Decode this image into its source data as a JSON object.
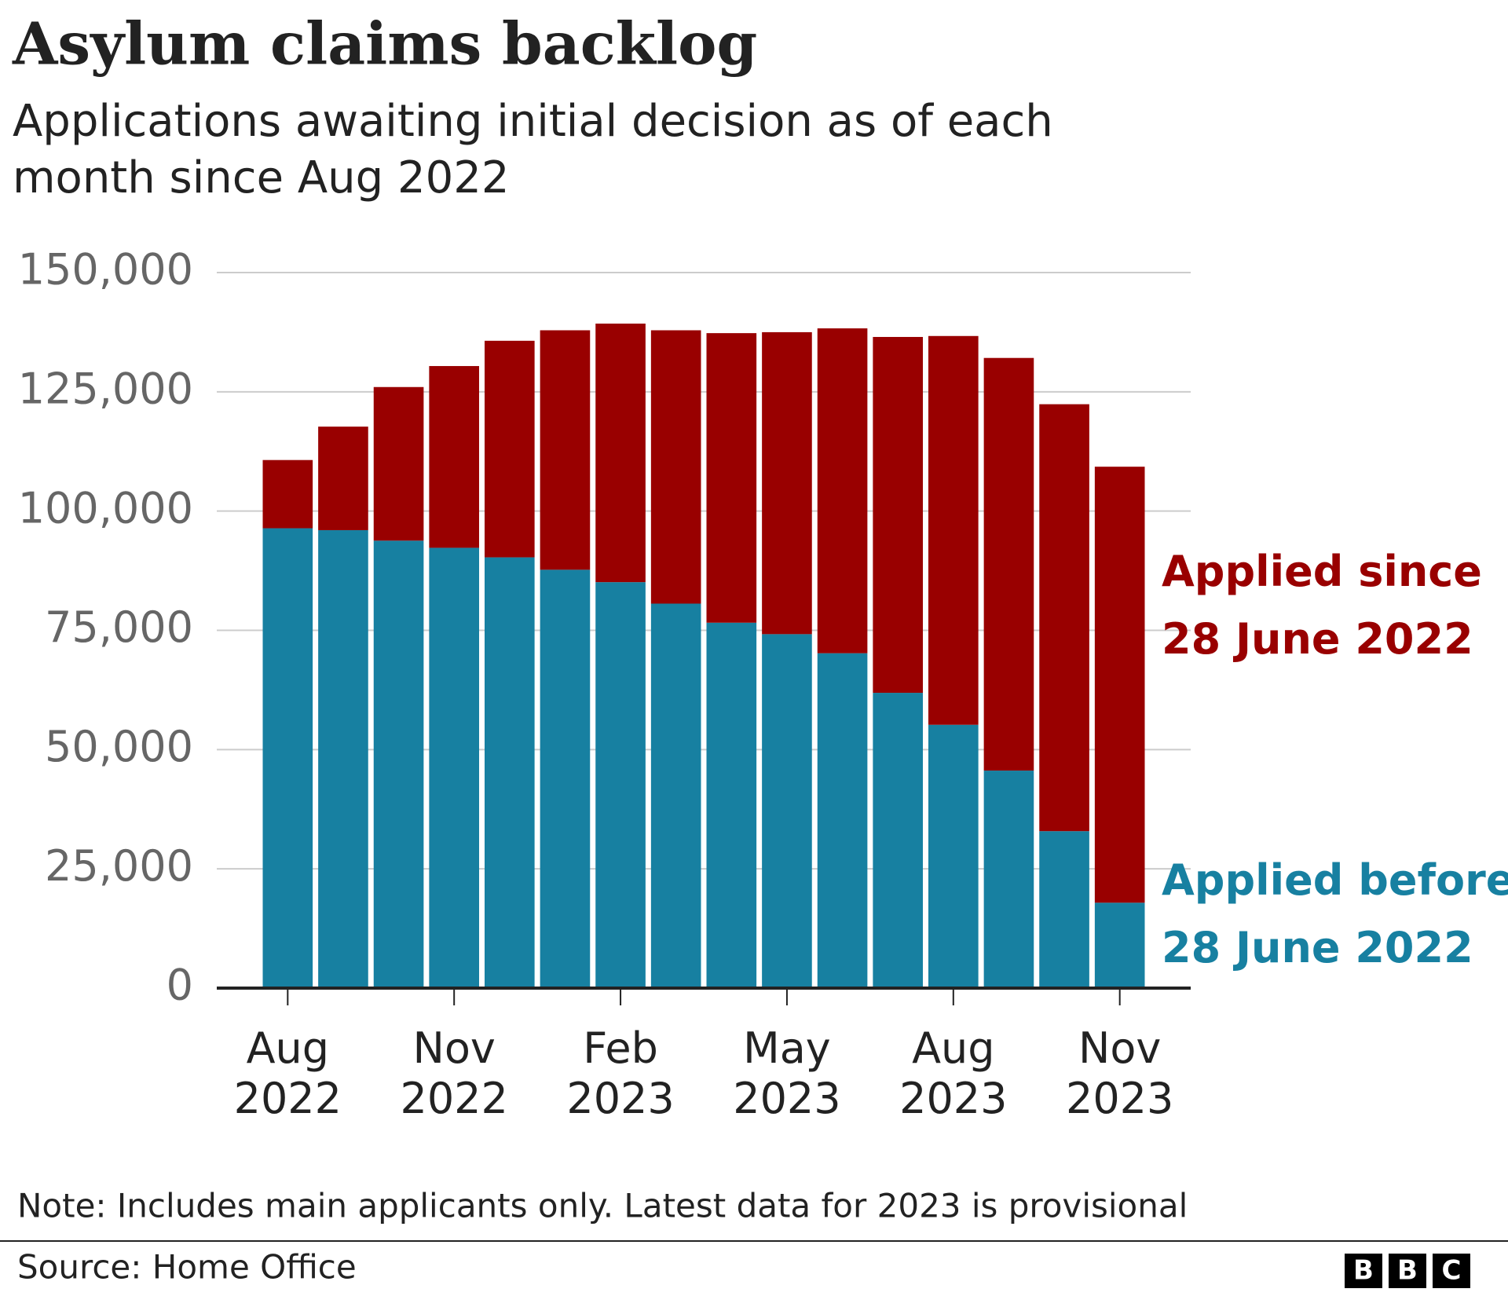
{
  "chart_data": {
    "type": "stacked_bar",
    "title": "Asylum claims backlog",
    "subtitle": "Applications awaiting initial decision as of each month since Aug 2022",
    "categories": [
      "Aug 2022",
      null,
      null,
      "Nov 2022",
      null,
      null,
      "Feb 2023",
      null,
      null,
      "May 2023",
      null,
      null,
      "Aug 2023",
      null,
      null,
      "Nov 2023"
    ],
    "series": [
      {
        "name": "Applied before 28 June 2022",
        "color": "#1780a1",
        "values": [
          96400,
          96000,
          93800,
          92300,
          90300,
          87700,
          85100,
          80600,
          76600,
          74200,
          70200,
          61900,
          55200,
          45600,
          32900,
          17900
        ]
      },
      {
        "name": "Applied since 28 June 2022",
        "color": "#990000",
        "values": [
          14300,
          21700,
          32200,
          38100,
          45400,
          50200,
          54200,
          57300,
          60700,
          63300,
          68100,
          74600,
          81500,
          86500,
          89500,
          91400
        ]
      }
    ],
    "ylim": [
      0,
      150000
    ],
    "yticks": [
      0,
      {
        "value": 25000,
        "label": "25,000"
      },
      {
        "value": 50000,
        "label": "50,000"
      },
      {
        "value": 75000,
        "label": "75,000"
      },
      {
        "value": 100000,
        "label": "100,000"
      },
      {
        "value": 125000,
        "label": "125,000"
      },
      {
        "value": 150000,
        "label": "150,000"
      }
    ],
    "grid": true,
    "note": "Note: Includes main applicants only. Latest data for 2023 is provisional",
    "source": "Source: Home Office",
    "logo": [
      "B",
      "B",
      "C"
    ]
  }
}
